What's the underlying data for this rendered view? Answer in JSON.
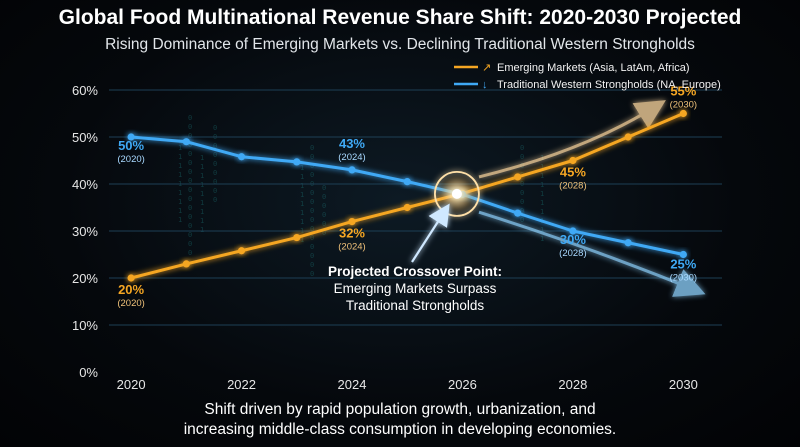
{
  "header": {
    "title": "Global Food Multinational Revenue Share Shift: 2020-2030 Projected",
    "subtitle": "Rising Dominance of Emerging Markets vs. Declining Traditional Western Strongholds"
  },
  "footnote": {
    "line1": "Shift driven by rapid population growth, urbanization, and",
    "line2": "increasing middle-class consumption in developing economies."
  },
  "annotation": {
    "line1": "Projected Crossover Point:",
    "line2": "Emerging Markets Surpass",
    "line3": "Traditional Strongholds"
  },
  "colors": {
    "emerging": "#f5a623",
    "western": "#3fa9f5",
    "axis": "#4cc3ff",
    "grid": "#1d3f55"
  },
  "chart_data": {
    "type": "line",
    "x": [
      2020,
      2021,
      2022,
      2023,
      2024,
      2025,
      2026,
      2027,
      2028,
      2029,
      2030
    ],
    "xticks": [
      "2020",
      "2022",
      "2024",
      "2026",
      "2028",
      "2030"
    ],
    "yticks": [
      "0%",
      "10%",
      "20%",
      "30%",
      "40%",
      "50%",
      "60%"
    ],
    "ylim": [
      0,
      60
    ],
    "xlim": [
      2019.6,
      2030.7
    ],
    "legend_position": "top-right",
    "series": [
      {
        "name": "Emerging Markets (Asia, LatAm, Africa)",
        "legend_icon": "arrow-up-right-icon",
        "values": [
          20,
          23,
          25.8,
          28.6,
          32,
          35,
          38,
          41.5,
          45,
          50,
          55
        ],
        "labels": [
          {
            "x": 2020,
            "value": "20%",
            "year": "(2020)"
          },
          {
            "x": 2024,
            "value": "32%",
            "year": "(2024)"
          },
          {
            "x": 2028,
            "value": "45%",
            "year": "(2028)"
          },
          {
            "x": 2030,
            "value": "55%",
            "year": "(2030)"
          }
        ]
      },
      {
        "name": "Traditional Western Strongholds (NA, Europe)",
        "legend_icon": "arrow-down-icon",
        "values": [
          50,
          49,
          45.8,
          44.7,
          43,
          40.5,
          37.8,
          33.8,
          30,
          27.5,
          25
        ],
        "labels": [
          {
            "x": 2020,
            "value": "50%",
            "year": "(2020)"
          },
          {
            "x": 2024,
            "value": "43%",
            "year": "(2024)"
          },
          {
            "x": 2028,
            "value": "30%",
            "year": "(2028)"
          },
          {
            "x": 2030,
            "value": "25%",
            "year": "(2030)"
          }
        ]
      }
    ],
    "crossover": {
      "x": 2025.9,
      "y": 37.9
    }
  }
}
